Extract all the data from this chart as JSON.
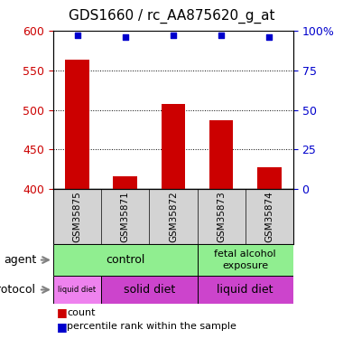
{
  "title": "GDS1660 / rc_AA875620_g_at",
  "samples": [
    "GSM35875",
    "GSM35871",
    "GSM35872",
    "GSM35873",
    "GSM35874"
  ],
  "counts": [
    563,
    416,
    508,
    487,
    428
  ],
  "percentile_ranks": [
    97,
    96,
    97,
    97,
    96
  ],
  "ylim_left": [
    400,
    600
  ],
  "ylim_right": [
    0,
    100
  ],
  "yticks_left": [
    400,
    450,
    500,
    550,
    600
  ],
  "yticks_right": [
    0,
    25,
    50,
    75,
    100
  ],
  "bar_color": "#cc0000",
  "dot_color": "#0000cc",
  "left_axis_color": "#cc0000",
  "right_axis_color": "#0000cc",
  "gray_bg": "#d3d3d3",
  "green_bg": "#90ee90",
  "pink_bg": "#ee82ee",
  "magenta_bg": "#cc44cc",
  "legend_count": "count",
  "legend_percentile": "percentile rank within the sample",
  "agent_label": "agent",
  "protocol_label": "protocol",
  "control_text": "control",
  "fae_text": "fetal alcohol\nexposure",
  "liquid_diet_text": "liquid diet",
  "solid_diet_text": "solid diet"
}
